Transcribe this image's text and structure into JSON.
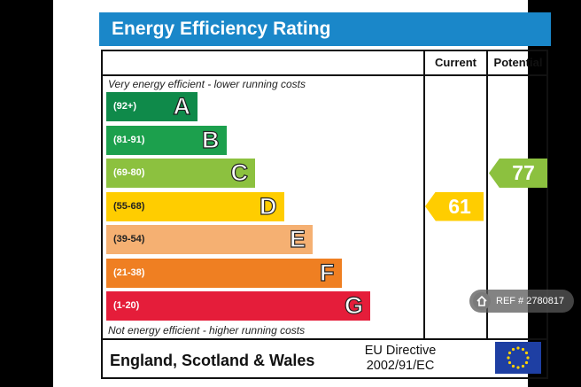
{
  "title": "Energy Efficiency Rating",
  "columns": {
    "current": "Current",
    "potential": "Potential"
  },
  "top_caption": "Very energy efficient - lower running costs",
  "bottom_caption": "Not energy efficient - higher running costs",
  "footer": {
    "region": "England, Scotland & Wales",
    "directive_line1": "EU Directive",
    "directive_line2": "2002/91/EC"
  },
  "watermark": {
    "text": "REF # 2780817",
    "icon": "home-icon"
  },
  "colors": {
    "title_bg": "#1a87c9",
    "A": "#0f8a4a",
    "B": "#1ca04d",
    "C": "#8cc13f",
    "D": "#ffcd00",
    "E": "#f5b072",
    "F": "#ef7f22",
    "G": "#e51d3a"
  },
  "chart_data": {
    "type": "bar",
    "title": "Energy Efficiency Rating",
    "bands": [
      {
        "letter": "A",
        "range": "(92+)"
      },
      {
        "letter": "B",
        "range": "(81-91)"
      },
      {
        "letter": "C",
        "range": "(69-80)"
      },
      {
        "letter": "D",
        "range": "(55-68)"
      },
      {
        "letter": "E",
        "range": "(39-54)"
      },
      {
        "letter": "F",
        "range": "(21-38)"
      },
      {
        "letter": "G",
        "range": "(1-20)"
      }
    ],
    "current": {
      "value": "61",
      "band": "D"
    },
    "potential": {
      "value": "77",
      "band": "C"
    }
  }
}
